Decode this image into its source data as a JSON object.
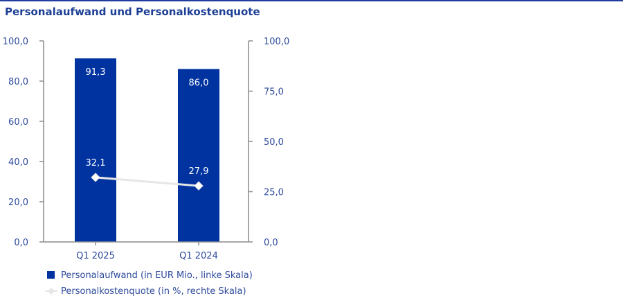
{
  "title": "Personalaufwand und Personalkostenquote",
  "colors": {
    "bar": "#0033a0",
    "line": "#e6e6e6",
    "axis": "#8c8c8c",
    "text": "#2d4a9c",
    "title": "#1d3f95"
  },
  "chart_data": {
    "type": "bar",
    "title": "Personalaufwand und Personalkostenquote",
    "categories": [
      "Q1 2025",
      "Q1 2024"
    ],
    "series": [
      {
        "name": "Personalaufwand (in EUR Mio., linke Skala)",
        "type": "bar",
        "axis": "left",
        "values": [
          91.3,
          86.0
        ],
        "labels": [
          "91,3",
          "86,0"
        ]
      },
      {
        "name": "Personalkostenquote (in %, rechte Skala)",
        "type": "line",
        "axis": "right",
        "values": [
          32.1,
          27.9
        ],
        "labels": [
          "32,1",
          "27,9"
        ]
      }
    ],
    "left_axis": {
      "ylim": [
        0,
        100
      ],
      "ticks": [
        0,
        20,
        40,
        60,
        80,
        100
      ],
      "tick_labels": [
        "0,0",
        "20,0",
        "40,0",
        "60,0",
        "80,0",
        "100,0"
      ]
    },
    "right_axis": {
      "ylim": [
        0,
        100
      ],
      "ticks": [
        0,
        25,
        50,
        75,
        100
      ],
      "tick_labels": [
        "0,0",
        "25,0",
        "50,0",
        "75,0",
        "100,0"
      ]
    },
    "grid": false,
    "legend_position": "bottom-left"
  }
}
